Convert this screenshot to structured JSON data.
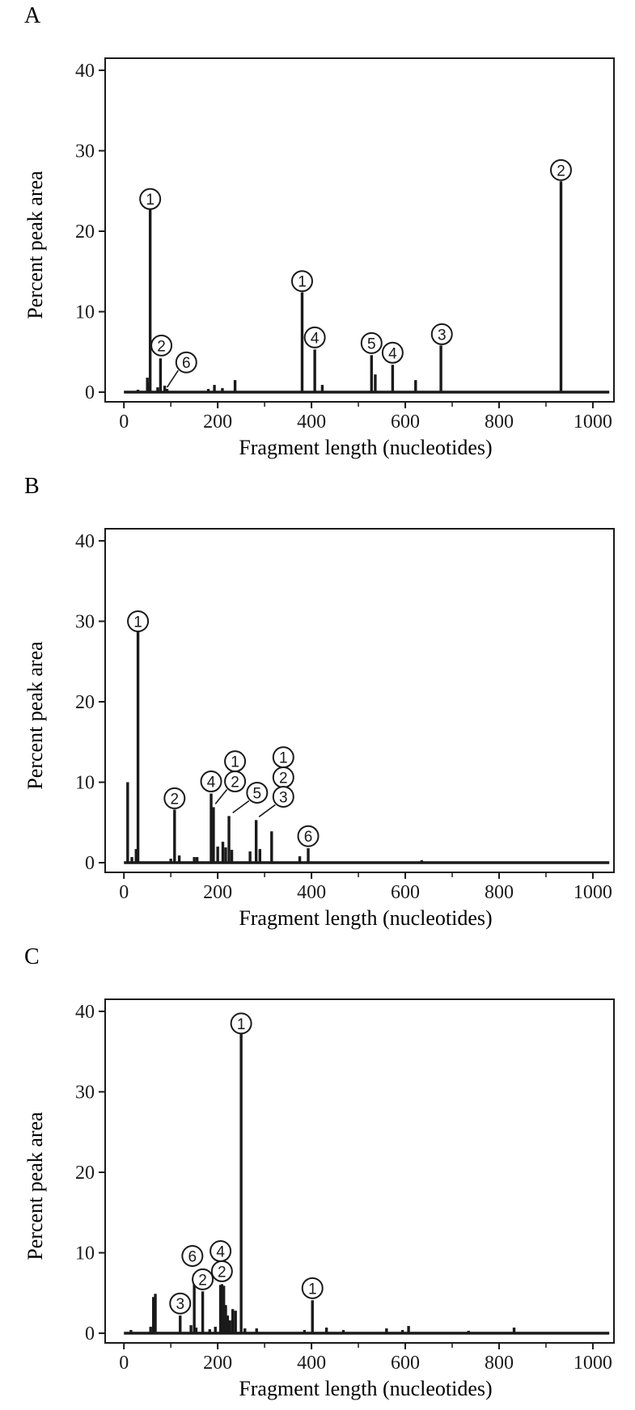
{
  "figure": {
    "colors": {
      "ink": "#1a1a1a",
      "background": "#ffffff"
    }
  },
  "chart_data": [
    {
      "type": "bar",
      "panel": "A",
      "xlabel": "Fragment length (nucleotides)",
      "ylabel": "Percent peak area",
      "xlim": [
        -40,
        1045
      ],
      "ylim": [
        -1.2,
        41.5
      ],
      "xticks": [
        0,
        200,
        400,
        600,
        800,
        1000
      ],
      "yticks": [
        0,
        10,
        20,
        30,
        40
      ],
      "grid": false,
      "legend": "none",
      "peaks": [
        {
          "x": 30,
          "y": 0.3
        },
        {
          "x": 50,
          "y": 1.8
        },
        {
          "x": 53,
          "y": 1.2
        },
        {
          "x": 56,
          "y": 22.7
        },
        {
          "x": 72,
          "y": 0.6
        },
        {
          "x": 78,
          "y": 4.2
        },
        {
          "x": 87,
          "y": 0.8
        },
        {
          "x": 92,
          "y": 0.4
        },
        {
          "x": 180,
          "y": 0.4
        },
        {
          "x": 193,
          "y": 0.9
        },
        {
          "x": 210,
          "y": 0.5
        },
        {
          "x": 237,
          "y": 1.5
        },
        {
          "x": 380,
          "y": 12.4
        },
        {
          "x": 407,
          "y": 5.3
        },
        {
          "x": 423,
          "y": 0.9
        },
        {
          "x": 528,
          "y": 4.6
        },
        {
          "x": 536,
          "y": 2.2
        },
        {
          "x": 573,
          "y": 3.4
        },
        {
          "x": 622,
          "y": 1.5
        },
        {
          "x": 676,
          "y": 5.8
        },
        {
          "x": 932,
          "y": 26.2
        }
      ],
      "annotations": [
        {
          "text": "1",
          "x": 56,
          "y": 24.0
        },
        {
          "text": "2",
          "x": 80,
          "y": 5.8
        },
        {
          "text": "6",
          "x": 133,
          "y": 3.7,
          "leader_to": {
            "x": 92,
            "y": 0.6
          }
        },
        {
          "text": "1",
          "x": 380,
          "y": 13.8
        },
        {
          "text": "4",
          "x": 407,
          "y": 6.8
        },
        {
          "text": "5",
          "x": 528,
          "y": 6.1
        },
        {
          "text": "4",
          "x": 573,
          "y": 4.9
        },
        {
          "text": "3",
          "x": 678,
          "y": 7.2
        },
        {
          "text": "2",
          "x": 932,
          "y": 27.6
        }
      ]
    },
    {
      "type": "bar",
      "panel": "B",
      "xlabel": "Fragment length (nucleotides)",
      "ylabel": "Percent peak area",
      "xlim": [
        -40,
        1045
      ],
      "ylim": [
        -1.2,
        41.5
      ],
      "xticks": [
        0,
        200,
        400,
        600,
        800,
        1000
      ],
      "yticks": [
        0,
        10,
        20,
        30,
        40
      ],
      "grid": false,
      "legend": "none",
      "peaks": [
        {
          "x": 8,
          "y": 10.0
        },
        {
          "x": 17,
          "y": 0.7
        },
        {
          "x": 26,
          "y": 1.7
        },
        {
          "x": 30,
          "y": 28.7
        },
        {
          "x": 100,
          "y": 0.5
        },
        {
          "x": 108,
          "y": 6.6
        },
        {
          "x": 118,
          "y": 0.9
        },
        {
          "x": 150,
          "y": 0.7
        },
        {
          "x": 156,
          "y": 0.7
        },
        {
          "x": 186,
          "y": 8.6
        },
        {
          "x": 191,
          "y": 6.9
        },
        {
          "x": 200,
          "y": 2.0
        },
        {
          "x": 211,
          "y": 2.6
        },
        {
          "x": 217,
          "y": 1.9
        },
        {
          "x": 224,
          "y": 5.8
        },
        {
          "x": 230,
          "y": 1.6
        },
        {
          "x": 269,
          "y": 1.4
        },
        {
          "x": 282,
          "y": 5.3
        },
        {
          "x": 290,
          "y": 1.7
        },
        {
          "x": 315,
          "y": 3.9
        },
        {
          "x": 375,
          "y": 0.8
        },
        {
          "x": 393,
          "y": 1.8
        },
        {
          "x": 635,
          "y": 0.3
        }
      ],
      "annotations": [
        {
          "text": "1",
          "x": 30,
          "y": 30.0
        },
        {
          "text": "2",
          "x": 108,
          "y": 8.0
        },
        {
          "text": "4",
          "x": 186,
          "y": 10.1
        },
        {
          "text": "2",
          "x": 237,
          "y": 10.1,
          "leader_to": {
            "x": 195,
            "y": 7.3
          }
        },
        {
          "text": "1",
          "x": 237,
          "y": 12.6
        },
        {
          "text": "5",
          "x": 284,
          "y": 8.7,
          "leader_to": {
            "x": 232,
            "y": 6.2
          }
        },
        {
          "text": "1",
          "x": 340,
          "y": 13.1
        },
        {
          "text": "2",
          "x": 340,
          "y": 10.6
        },
        {
          "text": "3",
          "x": 340,
          "y": 8.2,
          "leader_to": {
            "x": 288,
            "y": 5.7
          }
        },
        {
          "text": "6",
          "x": 393,
          "y": 3.3
        }
      ]
    },
    {
      "type": "bar",
      "panel": "C",
      "xlabel": "Fragment length (nucleotides)",
      "ylabel": "Percent peak area",
      "xlim": [
        -40,
        1045
      ],
      "ylim": [
        -1.2,
        41.5
      ],
      "xticks": [
        0,
        200,
        400,
        600,
        800,
        1000
      ],
      "yticks": [
        0,
        10,
        20,
        30,
        40
      ],
      "grid": false,
      "legend": "none",
      "peaks": [
        {
          "x": 15,
          "y": 0.4
        },
        {
          "x": 57,
          "y": 0.8
        },
        {
          "x": 63,
          "y": 4.5
        },
        {
          "x": 67,
          "y": 4.9
        },
        {
          "x": 120,
          "y": 2.2
        },
        {
          "x": 143,
          "y": 1.0
        },
        {
          "x": 150,
          "y": 7.4
        },
        {
          "x": 154,
          "y": 0.7
        },
        {
          "x": 168,
          "y": 5.2
        },
        {
          "x": 183,
          "y": 0.5
        },
        {
          "x": 195,
          "y": 0.8
        },
        {
          "x": 206,
          "y": 6.0
        },
        {
          "x": 209,
          "y": 6.1
        },
        {
          "x": 213,
          "y": 5.9
        },
        {
          "x": 217,
          "y": 3.5
        },
        {
          "x": 221,
          "y": 2.2
        },
        {
          "x": 226,
          "y": 1.6
        },
        {
          "x": 232,
          "y": 3.0
        },
        {
          "x": 238,
          "y": 2.8
        },
        {
          "x": 250,
          "y": 37.2
        },
        {
          "x": 258,
          "y": 0.6
        },
        {
          "x": 283,
          "y": 0.6
        },
        {
          "x": 385,
          "y": 0.4
        },
        {
          "x": 402,
          "y": 4.1
        },
        {
          "x": 432,
          "y": 0.7
        },
        {
          "x": 468,
          "y": 0.4
        },
        {
          "x": 560,
          "y": 0.6
        },
        {
          "x": 594,
          "y": 0.4
        },
        {
          "x": 607,
          "y": 0.9
        },
        {
          "x": 735,
          "y": 0.3
        },
        {
          "x": 832,
          "y": 0.7
        }
      ],
      "annotations": [
        {
          "text": "1",
          "x": 250,
          "y": 38.5
        },
        {
          "text": "3",
          "x": 120,
          "y": 3.7
        },
        {
          "text": "6",
          "x": 146,
          "y": 9.6
        },
        {
          "text": "2",
          "x": 168,
          "y": 6.7
        },
        {
          "text": "4",
          "x": 206,
          "y": 10.2
        },
        {
          "text": "2",
          "x": 209,
          "y": 7.7
        },
        {
          "text": "1",
          "x": 402,
          "y": 5.6
        }
      ]
    }
  ]
}
